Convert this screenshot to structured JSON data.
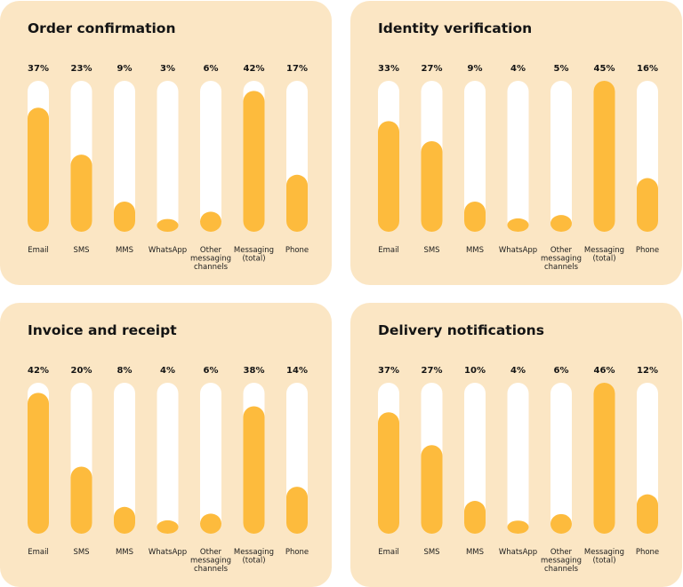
{
  "colors": {
    "panel_bg": "#fbe6c4",
    "track": "#ffffff",
    "fill": "#fdbb3d",
    "text": "#141414"
  },
  "chart_data": [
    {
      "type": "bar",
      "title": "Order confirmation",
      "categories": [
        [
          "Email"
        ],
        [
          "SMS"
        ],
        [
          "MMS"
        ],
        [
          "WhatsApp"
        ],
        [
          "Other",
          "messaging",
          "channels"
        ],
        [
          "Messaging",
          "(total)"
        ],
        [
          "Phone"
        ]
      ],
      "values": [
        37,
        23,
        9,
        3,
        6,
        42,
        17
      ],
      "value_labels": [
        "37%",
        "23%",
        "9%",
        "3%",
        "6%",
        "42%",
        "17%"
      ],
      "unit": "%",
      "ylim": [
        0,
        45
      ]
    },
    {
      "type": "bar",
      "title": "Identity verification",
      "categories": [
        [
          "Email"
        ],
        [
          "SMS"
        ],
        [
          "MMS"
        ],
        [
          "WhatsApp"
        ],
        [
          "Other",
          "messaging",
          "channels"
        ],
        [
          "Messaging",
          "(total)"
        ],
        [
          "Phone"
        ]
      ],
      "values": [
        33,
        27,
        9,
        4,
        5,
        45,
        16
      ],
      "value_labels": [
        "33%",
        "27%",
        "9%",
        "4%",
        "5%",
        "45%",
        "16%"
      ],
      "unit": "%",
      "ylim": [
        0,
        45
      ]
    },
    {
      "type": "bar",
      "title": "Invoice and receipt",
      "categories": [
        [
          "Email"
        ],
        [
          "SMS"
        ],
        [
          "MMS"
        ],
        [
          "WhatsApp"
        ],
        [
          "Other",
          "messaging",
          "channels"
        ],
        [
          "Messaging",
          "(total)"
        ],
        [
          "Phone"
        ]
      ],
      "values": [
        42,
        20,
        8,
        4,
        6,
        38,
        14
      ],
      "value_labels": [
        "42%",
        "20%",
        "8%",
        "4%",
        "6%",
        "38%",
        "14%"
      ],
      "unit": "%",
      "ylim": [
        0,
        45
      ]
    },
    {
      "type": "bar",
      "title": "Delivery notifications",
      "categories": [
        [
          "Email"
        ],
        [
          "SMS"
        ],
        [
          "MMS"
        ],
        [
          "WhatsApp"
        ],
        [
          "Other",
          "messaging",
          "channels"
        ],
        [
          "Messaging",
          "(total)"
        ],
        [
          "Phone"
        ]
      ],
      "values": [
        37,
        27,
        10,
        4,
        6,
        46,
        12
      ],
      "value_labels": [
        "37%",
        "27%",
        "10%",
        "4%",
        "6%",
        "46%",
        "12%"
      ],
      "unit": "%",
      "ylim": [
        0,
        46
      ]
    }
  ]
}
